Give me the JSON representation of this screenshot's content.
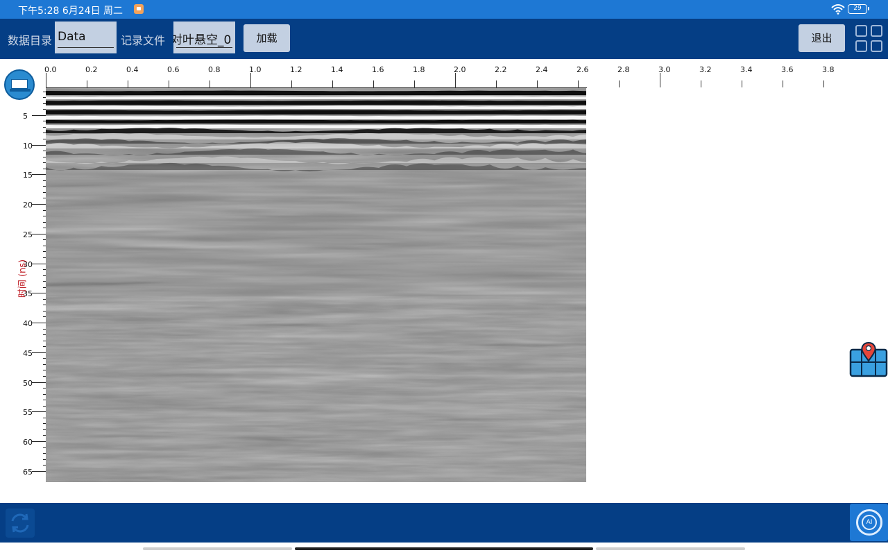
{
  "status_bar": {
    "time": "下午5:28 6月24日 周二",
    "battery": "29",
    "notification_icon": "app-notification-icon",
    "wifi_icon": "wifi-icon"
  },
  "toolbar": {
    "data_dir_label": "数据目录",
    "data_dir_value": "Data",
    "record_file_label": "记录文件",
    "record_file_value": "对叶悬空_0",
    "load_button": "加载",
    "exit_button": "退出",
    "grid_icon": "grid-icon"
  },
  "chart_data": {
    "type": "heatmap",
    "title": "",
    "xlabel": "",
    "ylabel": "时间 (ns)",
    "x_ticks": [
      "0.0",
      "0.2",
      "0.4",
      "0.6",
      "0.8",
      "1.0",
      "1.2",
      "1.4",
      "1.6",
      "1.8",
      "2.0",
      "2.2",
      "2.4",
      "2.6",
      "2.8",
      "3.0",
      "3.2",
      "3.4",
      "3.6",
      "3.8"
    ],
    "y_ticks": [
      "5",
      "10",
      "15",
      "20",
      "25",
      "30",
      "35",
      "40",
      "45",
      "50",
      "55",
      "60",
      "65"
    ],
    "xlim": [
      0.0,
      3.9
    ],
    "ylim": [
      0,
      66
    ],
    "data_extent_x": [
      0.0,
      2.63
    ],
    "colormap": "grayscale",
    "grid": false
  },
  "side": {
    "ruler_icon": "ruler-settings-icon",
    "map_icon": "map-location-icon"
  },
  "bottom_bar": {
    "refresh_icon": "refresh-icon",
    "ai_label": "AI"
  },
  "colors": {
    "status_bar": "#1e78d4",
    "toolbar": "#053e85",
    "field_bg": "#c3d0e2",
    "axis_title": "#c0222a"
  }
}
